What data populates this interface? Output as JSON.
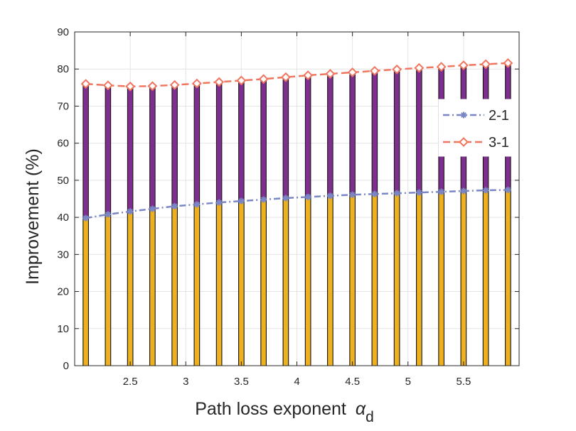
{
  "chart_data": {
    "type": "bar",
    "xlabel": "Path loss exponent",
    "xlabel_symbol": "α",
    "xlabel_subscript": "d",
    "ylabel": "Improvement  (%)",
    "ylim": [
      0,
      90
    ],
    "xlim": [
      2.0,
      6.0
    ],
    "yticks": [
      0,
      10,
      20,
      30,
      40,
      50,
      60,
      70,
      80,
      90
    ],
    "xticks": [
      2.5,
      3,
      3.5,
      4,
      4.5,
      5,
      5.5
    ],
    "xtick_labels": [
      "2.5",
      "3",
      "3.5",
      "4",
      "4.5",
      "5",
      "5.5"
    ],
    "x": [
      2.1,
      2.3,
      2.5,
      2.7,
      2.9,
      3.1,
      3.3,
      3.5,
      3.7,
      3.9,
      4.1,
      4.3,
      4.5,
      4.7,
      4.9,
      5.1,
      5.3,
      5.5,
      5.7,
      5.9
    ],
    "grid": true,
    "legend_position": "right",
    "series": [
      {
        "name": "2-1",
        "bar_color": "#EDB120",
        "line_color": "#7B86C6",
        "marker": "asterisk",
        "values": [
          39.8,
          40.8,
          41.6,
          42.3,
          43.0,
          43.5,
          44.0,
          44.4,
          44.8,
          45.2,
          45.5,
          45.8,
          46.1,
          46.3,
          46.5,
          46.7,
          46.9,
          47.1,
          47.3,
          47.4
        ]
      },
      {
        "name": "3-1",
        "bar_color": "#7E2F8E",
        "line_color": "#F0765F",
        "marker": "diamond",
        "values": [
          76.0,
          75.6,
          75.3,
          75.4,
          75.7,
          76.1,
          76.5,
          76.9,
          77.3,
          77.8,
          78.3,
          78.7,
          79.1,
          79.5,
          79.9,
          80.3,
          80.6,
          81.0,
          81.3,
          81.6
        ]
      }
    ]
  }
}
